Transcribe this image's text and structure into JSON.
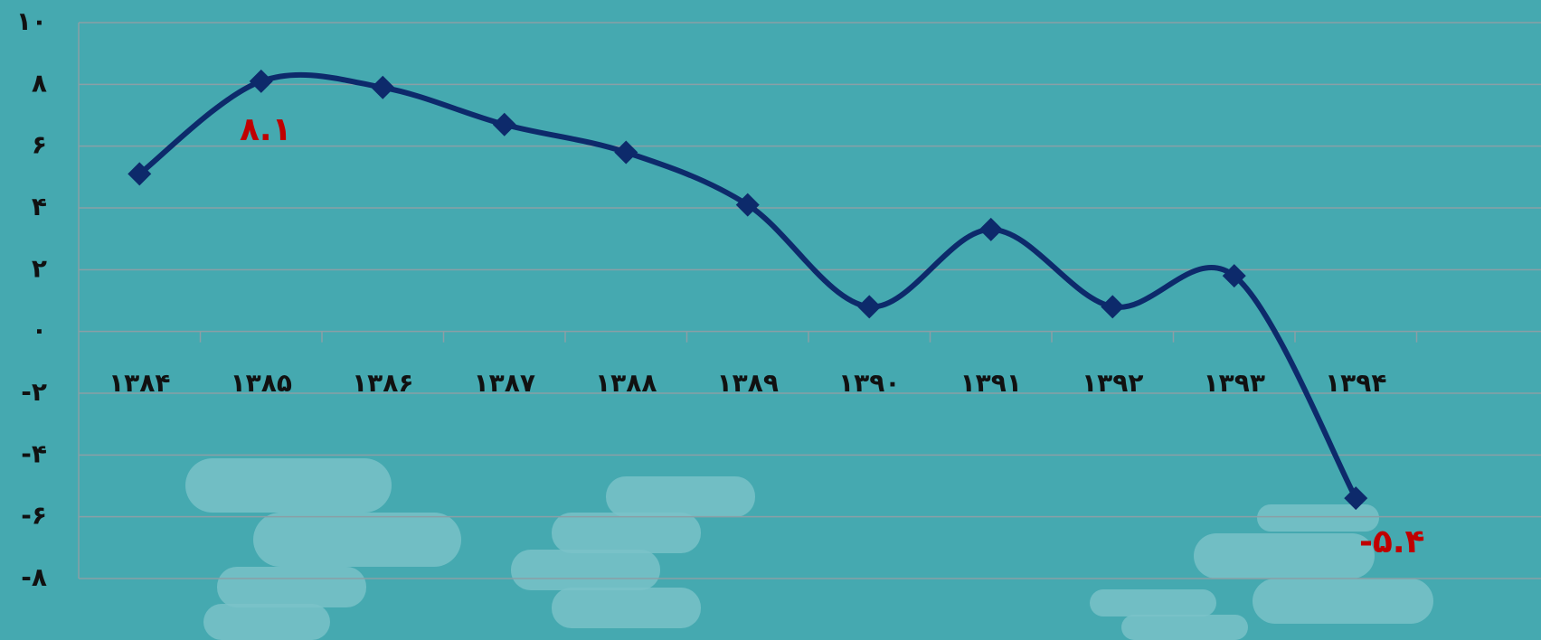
{
  "chart_data": {
    "type": "line",
    "categories": [
      "۱۳۸۴",
      "۱۳۸۵",
      "۱۳۸۶",
      "۱۳۸۷",
      "۱۳۸۸",
      "۱۳۸۹",
      "۱۳۹۰",
      "۱۳۹۱",
      "۱۳۹۲",
      "۱۳۹۳",
      "۱۳۹۴"
    ],
    "values": [
      5.1,
      8.1,
      7.9,
      6.7,
      5.8,
      4.1,
      0.8,
      3.3,
      0.8,
      1.8,
      -5.4
    ],
    "value_labels": [
      null,
      "۸.۱",
      null,
      null,
      null,
      null,
      null,
      null,
      null,
      null,
      "-۵.۴"
    ],
    "color": "#0d2a6b",
    "smooth": true,
    "ylim": [
      -8,
      10
    ],
    "yticks": [
      {
        "value": -8,
        "label": "-۸"
      },
      {
        "value": -6,
        "label": "-۶"
      },
      {
        "value": -4,
        "label": "-۴"
      },
      {
        "value": -2,
        "label": "-۲"
      },
      {
        "value": 0,
        "label": "۰"
      },
      {
        "value": 2,
        "label": "۲"
      },
      {
        "value": 4,
        "label": "۴"
      },
      {
        "value": 6,
        "label": "۶"
      },
      {
        "value": 8,
        "label": "۸"
      },
      {
        "value": 10,
        "label": "۱۰"
      }
    ],
    "grid": true
  }
}
